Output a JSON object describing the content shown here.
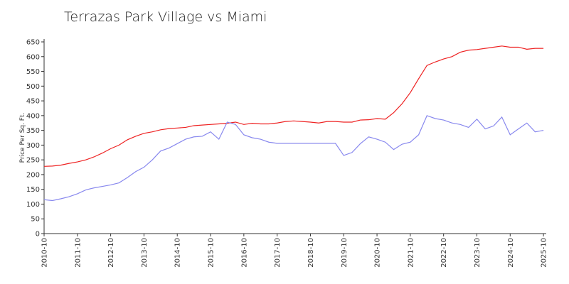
{
  "chart_data": {
    "type": "line",
    "title": "Terrazas Park Village vs Miami",
    "y_label": "Price Per Sq. Ft.",
    "x": [
      "2010-10",
      "2011-01",
      "2011-04",
      "2011-07",
      "2011-10",
      "2012-01",
      "2012-04",
      "2012-07",
      "2012-10",
      "2013-01",
      "2013-04",
      "2013-07",
      "2013-10",
      "2014-01",
      "2014-04",
      "2014-07",
      "2014-10",
      "2015-01",
      "2015-04",
      "2015-07",
      "2015-10",
      "2016-01",
      "2016-04",
      "2016-07",
      "2016-10",
      "2017-01",
      "2017-04",
      "2017-07",
      "2017-10",
      "2018-01",
      "2018-04",
      "2018-07",
      "2018-10",
      "2019-01",
      "2019-04",
      "2019-07",
      "2019-10",
      "2020-01",
      "2020-04",
      "2020-07",
      "2020-10",
      "2021-01",
      "2021-04",
      "2021-07",
      "2021-10",
      "2022-01",
      "2022-04",
      "2022-07",
      "2022-10",
      "2023-01",
      "2023-04",
      "2023-07",
      "2023-10",
      "2024-01",
      "2024-04",
      "2024-07",
      "2024-10",
      "2025-01",
      "2025-04",
      "2025-07",
      "2025-10"
    ],
    "series": [
      {
        "color": "#ee2222",
        "values": [
          228,
          229,
          232,
          238,
          243,
          250,
          260,
          273,
          288,
          300,
          318,
          330,
          340,
          345,
          352,
          356,
          358,
          360,
          366,
          368,
          370,
          372,
          374,
          378,
          370,
          374,
          372,
          372,
          375,
          380,
          382,
          380,
          378,
          375,
          380,
          380,
          378,
          378,
          385,
          386,
          390,
          388,
          410,
          440,
          478,
          525,
          570,
          582,
          592,
          600,
          615,
          622,
          624,
          628,
          632,
          636,
          632,
          632,
          625,
          628,
          628
        ]
      },
      {
        "color": "#8888ee",
        "values": [
          115,
          112,
          118,
          125,
          135,
          148,
          155,
          160,
          165,
          172,
          190,
          210,
          225,
          250,
          280,
          290,
          305,
          320,
          328,
          330,
          345,
          320,
          378,
          370,
          335,
          325,
          320,
          310,
          306,
          306,
          306,
          306,
          306,
          306,
          306,
          306,
          265,
          275,
          305,
          328,
          320,
          310,
          285,
          303,
          310,
          335,
          400,
          390,
          385,
          375,
          370,
          360,
          388,
          355,
          365,
          395,
          335,
          355,
          375,
          345,
          350
        ]
      }
    ],
    "xlim": [
      "2010-10",
      "2025-11"
    ],
    "xticks": [
      "2010-10",
      "2011-10",
      "2012-10",
      "2013-10",
      "2014-10",
      "2015-10",
      "2016-10",
      "2017-10",
      "2018-10",
      "2019-10",
      "2020-10",
      "2021-10",
      "2022-10",
      "2023-10",
      "2024-10",
      "2025-10"
    ],
    "ylim": [
      0,
      650
    ],
    "yticks": [
      0,
      50,
      100,
      150,
      200,
      250,
      300,
      350,
      400,
      450,
      500,
      550,
      600,
      650
    ],
    "grid": false
  }
}
